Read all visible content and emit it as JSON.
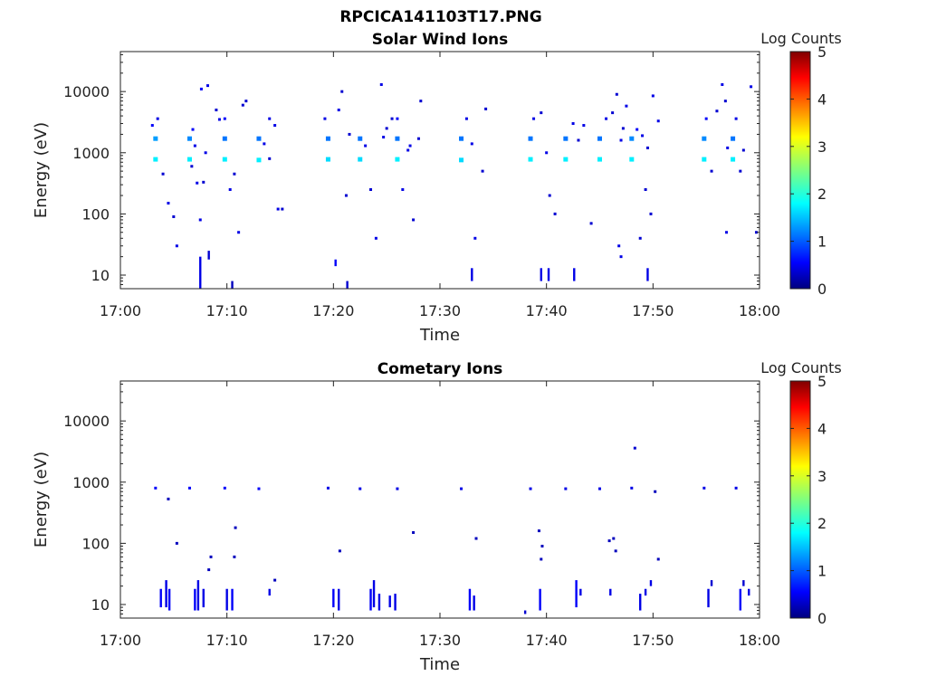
{
  "figure_title": "RPCICA141103T17.PNG",
  "colorbar_label": "Log Counts",
  "colorbar_ticks": [
    "0",
    "1",
    "2",
    "3",
    "4",
    "5"
  ],
  "chart_data": [
    {
      "type": "heatmap",
      "title": "Solar Wind Ions",
      "xlabel": "Time",
      "ylabel": "Energy (eV)",
      "x_ticks": [
        "17:00",
        "17:10",
        "17:20",
        "17:30",
        "17:40",
        "17:50",
        "18:00"
      ],
      "y_ticks": [
        "10",
        "100",
        "1000",
        "10000"
      ],
      "y_scale": "log",
      "ylim": [
        6,
        45000
      ],
      "xlim_minutes": [
        0,
        60
      ],
      "clim": [
        0,
        5
      ],
      "colormap": "jet",
      "points": [
        [
          3.3,
          780,
          1.8
        ],
        [
          3.3,
          1700,
          1.4
        ],
        [
          3.0,
          2800,
          0.6
        ],
        [
          3.5,
          3600,
          0.5
        ],
        [
          4.0,
          450,
          0.4
        ],
        [
          4.5,
          150,
          0.5
        ],
        [
          5.0,
          90,
          0.4
        ],
        [
          5.3,
          30,
          0.5
        ],
        [
          6.5,
          780,
          1.8
        ],
        [
          6.5,
          1700,
          1.3
        ],
        [
          6.8,
          2400,
          0.6
        ],
        [
          7.0,
          1300,
          0.5
        ],
        [
          6.7,
          600,
          0.4
        ],
        [
          7.2,
          320,
          0.5
        ],
        [
          7.5,
          80,
          0.5
        ],
        [
          7.8,
          330,
          0.4
        ],
        [
          8.0,
          1000,
          0.5
        ],
        [
          7.6,
          11000,
          0.6
        ],
        [
          8.2,
          12500,
          0.5
        ],
        [
          9.0,
          5000,
          0.4
        ],
        [
          9.3,
          3500,
          0.5
        ],
        [
          9.8,
          780,
          1.8
        ],
        [
          9.8,
          1700,
          1.2
        ],
        [
          9.8,
          3600,
          0.6
        ],
        [
          10.3,
          250,
          0.5
        ],
        [
          10.7,
          450,
          0.4
        ],
        [
          11.1,
          50,
          0.5
        ],
        [
          11.5,
          6000,
          0.4
        ],
        [
          11.8,
          7000,
          0.4
        ],
        [
          13.0,
          760,
          1.8
        ],
        [
          13.0,
          1700,
          1.2
        ],
        [
          13.5,
          1400,
          0.5
        ],
        [
          14.0,
          800,
          0.4
        ],
        [
          14.5,
          2800,
          0.5
        ],
        [
          14.0,
          3600,
          0.5
        ],
        [
          14.8,
          120,
          0.5
        ],
        [
          15.2,
          120,
          0.4
        ],
        [
          19.5,
          780,
          1.7
        ],
        [
          19.5,
          1700,
          1.2
        ],
        [
          19.2,
          3600,
          0.5
        ],
        [
          20.5,
          5000,
          0.5
        ],
        [
          20.8,
          10000,
          0.4
        ],
        [
          21.2,
          200,
          0.4
        ],
        [
          21.5,
          2000,
          0.4
        ],
        [
          22.5,
          1700,
          1.2
        ],
        [
          22.5,
          780,
          1.7
        ],
        [
          23.0,
          1300,
          0.5
        ],
        [
          23.5,
          250,
          0.4
        ],
        [
          24.0,
          40,
          0.5
        ],
        [
          24.5,
          13000,
          0.5
        ],
        [
          24.7,
          1800,
          0.5
        ],
        [
          25.0,
          2500,
          0.4
        ],
        [
          25.5,
          3600,
          0.4
        ],
        [
          26.0,
          780,
          1.8
        ],
        [
          26.0,
          1700,
          1.2
        ],
        [
          26.0,
          3600,
          0.6
        ],
        [
          26.5,
          250,
          0.5
        ],
        [
          27.0,
          1100,
          0.5
        ],
        [
          27.5,
          80,
          0.4
        ],
        [
          28.0,
          1700,
          0.4
        ],
        [
          28.2,
          7000,
          0.4
        ],
        [
          27.2,
          1300,
          0.5
        ],
        [
          32.0,
          760,
          1.7
        ],
        [
          32.0,
          1700,
          1.2
        ],
        [
          32.5,
          3600,
          0.5
        ],
        [
          33.0,
          1400,
          0.5
        ],
        [
          33.3,
          40,
          0.5
        ],
        [
          34.0,
          500,
          0.4
        ],
        [
          34.3,
          5200,
          0.4
        ],
        [
          38.5,
          780,
          1.8
        ],
        [
          38.5,
          1700,
          1.2
        ],
        [
          38.8,
          3600,
          0.5
        ],
        [
          39.5,
          4500,
          0.4
        ],
        [
          40.0,
          1000,
          0.5
        ],
        [
          40.3,
          200,
          0.4
        ],
        [
          40.8,
          100,
          0.4
        ],
        [
          41.8,
          780,
          1.8
        ],
        [
          41.8,
          1700,
          1.2
        ],
        [
          42.5,
          3000,
          0.5
        ],
        [
          43.0,
          1600,
          0.4
        ],
        [
          43.5,
          2800,
          0.5
        ],
        [
          44.2,
          70,
          0.4
        ],
        [
          45.0,
          780,
          1.8
        ],
        [
          45.0,
          1700,
          1.2
        ],
        [
          45.6,
          3600,
          0.5
        ],
        [
          46.2,
          4500,
          0.4
        ],
        [
          46.6,
          9000,
          0.4
        ],
        [
          47.0,
          1600,
          0.5
        ],
        [
          47.2,
          2500,
          0.4
        ],
        [
          47.5,
          5800,
          0.5
        ],
        [
          48.0,
          780,
          1.8
        ],
        [
          48.0,
          1700,
          1.3
        ],
        [
          48.5,
          2400,
          0.6
        ],
        [
          49.0,
          1900,
          0.5
        ],
        [
          49.5,
          1200,
          0.4
        ],
        [
          50.0,
          8500,
          0.5
        ],
        [
          50.5,
          3300,
          0.5
        ],
        [
          49.3,
          250,
          0.4
        ],
        [
          49.8,
          100,
          0.4
        ],
        [
          48.8,
          40,
          0.4
        ],
        [
          46.8,
          30,
          0.5
        ],
        [
          47.0,
          20,
          0.5
        ],
        [
          54.8,
          780,
          1.8
        ],
        [
          54.8,
          1700,
          1.3
        ],
        [
          55.0,
          3600,
          0.6
        ],
        [
          55.5,
          500,
          0.4
        ],
        [
          56.0,
          4800,
          0.4
        ],
        [
          56.5,
          13000,
          0.5
        ],
        [
          56.8,
          7000,
          0.4
        ],
        [
          57.0,
          1200,
          0.5
        ],
        [
          57.5,
          1700,
          1.2
        ],
        [
          57.5,
          780,
          1.8
        ],
        [
          57.8,
          3600,
          0.5
        ],
        [
          58.2,
          500,
          0.4
        ],
        [
          58.5,
          1100,
          0.4
        ],
        [
          59.2,
          12000,
          0.5
        ],
        [
          59.7,
          50,
          0.4
        ],
        [
          56.9,
          50,
          0.5
        ]
      ],
      "streaks": [
        [
          7.5,
          6,
          20,
          0.5
        ],
        [
          8.3,
          18,
          25,
          0.4
        ],
        [
          10.5,
          6,
          8,
          0.3
        ],
        [
          20.2,
          14,
          18,
          0.6
        ],
        [
          21.3,
          6,
          8,
          0.4
        ],
        [
          33.0,
          8,
          13,
          0.5
        ],
        [
          39.5,
          8,
          13,
          0.5
        ],
        [
          40.2,
          8,
          13,
          0.5
        ],
        [
          42.6,
          8,
          13,
          0.5
        ],
        [
          49.5,
          8,
          13,
          0.5
        ]
      ]
    },
    {
      "type": "heatmap",
      "title": "Cometary Ions",
      "xlabel": "Time",
      "ylabel": "Energy (eV)",
      "x_ticks": [
        "17:00",
        "17:10",
        "17:20",
        "17:30",
        "17:40",
        "17:50",
        "18:00"
      ],
      "y_ticks": [
        "10",
        "100",
        "1000",
        "10000"
      ],
      "y_scale": "log",
      "ylim": [
        6,
        45000
      ],
      "xlim_minutes": [
        0,
        60
      ],
      "clim": [
        0,
        5
      ],
      "colormap": "jet",
      "points": [
        [
          3.3,
          800,
          0.6
        ],
        [
          6.5,
          800,
          0.6
        ],
        [
          9.8,
          800,
          0.6
        ],
        [
          13.0,
          780,
          0.6
        ],
        [
          19.5,
          800,
          0.5
        ],
        [
          22.5,
          780,
          0.5
        ],
        [
          26.0,
          780,
          0.5
        ],
        [
          32.0,
          780,
          0.5
        ],
        [
          38.5,
          780,
          0.5
        ],
        [
          41.8,
          780,
          0.5
        ],
        [
          45.0,
          780,
          0.5
        ],
        [
          48.0,
          800,
          0.5
        ],
        [
          54.8,
          800,
          0.5
        ],
        [
          57.8,
          800,
          0.5
        ],
        [
          4.5,
          530,
          0.3
        ],
        [
          5.3,
          100,
          0.3
        ],
        [
          8.5,
          60,
          0.3
        ],
        [
          8.3,
          37,
          0.3
        ],
        [
          10.8,
          180,
          0.3
        ],
        [
          10.7,
          60,
          0.3
        ],
        [
          20.6,
          75,
          0.3
        ],
        [
          27.5,
          150,
          0.3
        ],
        [
          33.4,
          120,
          0.3
        ],
        [
          39.3,
          160,
          0.3
        ],
        [
          39.6,
          90,
          0.3
        ],
        [
          39.5,
          55,
          0.3
        ],
        [
          45.9,
          110,
          0.3
        ],
        [
          46.3,
          120,
          0.3
        ],
        [
          46.5,
          75,
          0.3
        ],
        [
          48.3,
          3600,
          0.4
        ],
        [
          50.5,
          55,
          0.3
        ],
        [
          50.2,
          700,
          0.3
        ],
        [
          14.5,
          25,
          0.3
        ]
      ],
      "streaks": [
        [
          3.8,
          9,
          18,
          0.6
        ],
        [
          4.3,
          9,
          25,
          0.5
        ],
        [
          4.6,
          8,
          18,
          0.6
        ],
        [
          7.0,
          8,
          18,
          0.6
        ],
        [
          7.3,
          8,
          25,
          0.5
        ],
        [
          7.8,
          9,
          18,
          0.5
        ],
        [
          10.0,
          8,
          18,
          0.5
        ],
        [
          10.5,
          8,
          18,
          0.6
        ],
        [
          14.0,
          14,
          18,
          0.5
        ],
        [
          20.0,
          9,
          18,
          0.6
        ],
        [
          20.5,
          8,
          18,
          0.5
        ],
        [
          23.5,
          8,
          18,
          0.6
        ],
        [
          23.8,
          9,
          25,
          0.5
        ],
        [
          24.3,
          8,
          15,
          0.5
        ],
        [
          25.3,
          9,
          14,
          0.5
        ],
        [
          25.8,
          8,
          15,
          0.5
        ],
        [
          32.8,
          8,
          18,
          0.6
        ],
        [
          33.2,
          8,
          14,
          0.5
        ],
        [
          38.0,
          7,
          8,
          0.4
        ],
        [
          39.4,
          8,
          18,
          0.6
        ],
        [
          42.8,
          9,
          25,
          0.6
        ],
        [
          43.2,
          14,
          18,
          0.5
        ],
        [
          46.0,
          14,
          18,
          0.5
        ],
        [
          48.8,
          8,
          15,
          0.5
        ],
        [
          49.3,
          14,
          18,
          0.5
        ],
        [
          49.8,
          20,
          25,
          0.5
        ],
        [
          55.2,
          9,
          18,
          0.5
        ],
        [
          55.5,
          20,
          25,
          0.4
        ],
        [
          58.2,
          8,
          18,
          0.6
        ],
        [
          58.5,
          20,
          25,
          0.4
        ],
        [
          59.0,
          14,
          18,
          0.5
        ]
      ]
    }
  ]
}
